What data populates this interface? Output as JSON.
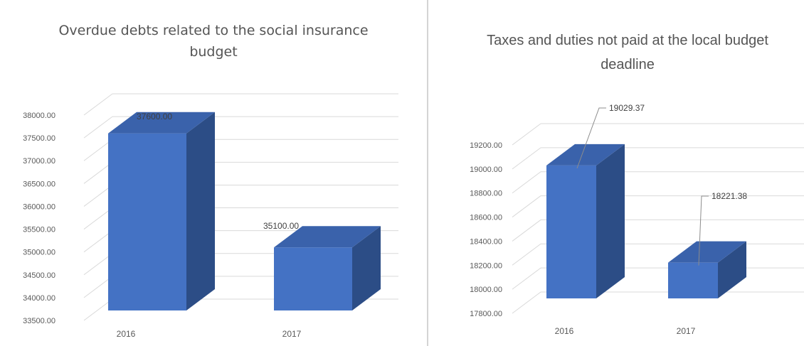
{
  "chart_data": [
    {
      "type": "bar",
      "title": "Overdue debts related to the social insurance budget",
      "categories": [
        "2016",
        "2017"
      ],
      "values": [
        37600,
        35100
      ],
      "data_labels": [
        "37600.00",
        "35100.00"
      ],
      "ylim": [
        33500,
        38000
      ],
      "yticks": [
        "33500.00",
        "34000.00",
        "34500.00",
        "35000.00",
        "35500.00",
        "36000.00",
        "36500.00",
        "37000.00",
        "37500.00",
        "38000.00"
      ],
      "grid": true,
      "legend": "none",
      "style": "3d-column",
      "color": "#4472c4"
    },
    {
      "type": "bar",
      "title": "Taxes and duties not paid at the local budget deadline",
      "categories": [
        "2016",
        "2017"
      ],
      "values": [
        19029.37,
        18221.38
      ],
      "data_labels": [
        "19029.37",
        "18221.38"
      ],
      "ylim": [
        17800,
        19200
      ],
      "yticks": [
        "17800.00",
        "18000.00",
        "18200.00",
        "18400.00",
        "18600.00",
        "18800.00",
        "19000.00",
        "19200.00"
      ],
      "grid": true,
      "legend": "none",
      "style": "3d-column",
      "color": "#4472c4"
    }
  ]
}
